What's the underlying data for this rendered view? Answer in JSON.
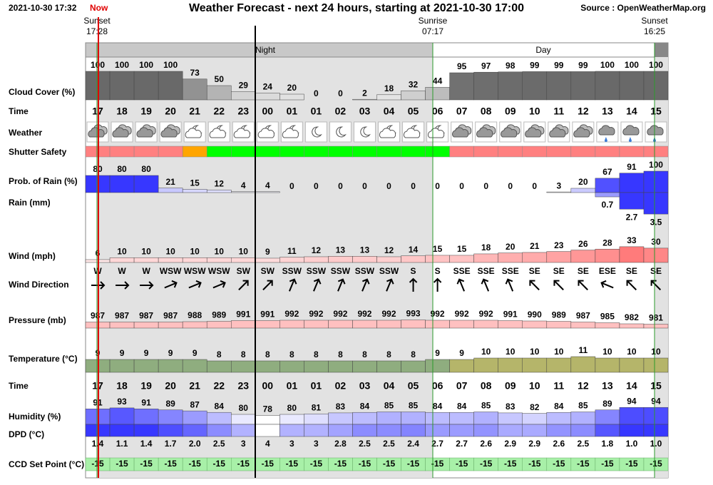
{
  "header": {
    "timestamp": "2021-10-30 17:32",
    "now": "Now",
    "title": "Weather Forecast - next 24 hours, starting at 2021-10-30 17:00",
    "source": "Source : OpenWeatherMap.org"
  },
  "sun_events": [
    {
      "label": "Sunset",
      "time": "17:28"
    },
    {
      "label": "Sunrise",
      "time": "07:17"
    },
    {
      "label": "Sunset",
      "time": "16:25"
    }
  ],
  "periods": [
    "Night",
    "Day"
  ],
  "row_labels": [
    "Cloud Cover (%)",
    "Time",
    "Weather",
    "Shutter Safety",
    "Prob. of Rain (%)",
    "Rain (mm)",
    "Wind (mph)",
    "Wind Direction",
    "Pressure (mb)",
    "Temperature (°C)",
    "Time",
    "Humidity (%)",
    "DPD (°C)",
    "CCD Set Point (°C)"
  ],
  "hours": [
    "17",
    "18",
    "19",
    "20",
    "21",
    "22",
    "23",
    "00",
    "01",
    "01",
    "02",
    "03",
    "04",
    "05",
    "06",
    "07",
    "08",
    "09",
    "10",
    "11",
    "12",
    "13",
    "14",
    "15"
  ],
  "cloud_cover": [
    100,
    100,
    100,
    100,
    73,
    50,
    29,
    24,
    20,
    0,
    0,
    2,
    18,
    32,
    44,
    95,
    97,
    98,
    99,
    99,
    99,
    100,
    100,
    100
  ],
  "weather": [
    "cloudy",
    "cloudy",
    "cloudy",
    "cloudy",
    "night-partly",
    "night-partly",
    "night-partly",
    "night-partly",
    "night-partly",
    "clear-night",
    "clear-night",
    "clear-night",
    "night-partly",
    "night-partly",
    "night-partly",
    "cloudy",
    "cloudy",
    "cloudy",
    "cloudy",
    "cloudy",
    "cloudy",
    "rain",
    "rain",
    "rain"
  ],
  "shutter_safety": [
    "#ff8080",
    "#ff8080",
    "#ff8080",
    "#ff8080",
    "#ffa500",
    "#00ff00",
    "#00ff00",
    "#00ff00",
    "#00ff00",
    "#00ff00",
    "#00ff00",
    "#00ff00",
    "#00ff00",
    "#00ff00",
    "#00ff00",
    "#ff8080",
    "#ff8080",
    "#ff8080",
    "#ff8080",
    "#ff8080",
    "#ff8080",
    "#ff8080",
    "#ff8080",
    "#ff8080"
  ],
  "rain_probability": [
    80,
    80,
    80,
    21,
    15,
    12,
    4,
    4,
    0,
    0,
    0,
    0,
    0,
    0,
    0,
    0,
    0,
    0,
    0,
    3,
    20,
    67,
    91,
    100
  ],
  "rain_mm": [
    null,
    null,
    null,
    null,
    null,
    null,
    null,
    null,
    null,
    null,
    null,
    null,
    null,
    null,
    null,
    null,
    null,
    null,
    null,
    null,
    null,
    0.7,
    2.7,
    3.5
  ],
  "wind_mph": [
    6,
    10,
    10,
    10,
    10,
    10,
    10,
    9,
    11,
    12,
    13,
    13,
    12,
    14,
    15,
    15,
    18,
    20,
    21,
    23,
    26,
    28,
    33,
    30
  ],
  "wind_direction": [
    "W",
    "W",
    "W",
    "WSW",
    "WSW",
    "WSW",
    "SW",
    "SW",
    "SSW",
    "SSW",
    "SSW",
    "SSW",
    "SSW",
    "S",
    "S",
    "SSE",
    "SSE",
    "SSE",
    "SE",
    "SE",
    "SE",
    "ESE",
    "SE",
    "SE"
  ],
  "pressure_mb": [
    987,
    987,
    987,
    987,
    988,
    989,
    991,
    991,
    992,
    992,
    992,
    992,
    992,
    993,
    992,
    992,
    992,
    991,
    990,
    989,
    987,
    985,
    982,
    981
  ],
  "temperature_c": [
    9,
    9,
    9,
    9,
    9,
    8,
    8,
    8,
    8,
    8,
    8,
    8,
    8,
    8,
    9,
    9,
    10,
    10,
    10,
    10,
    11,
    10,
    10,
    10
  ],
  "humidity": [
    91,
    93,
    91,
    89,
    87,
    84,
    80,
    78,
    80,
    81,
    83,
    84,
    85,
    85,
    84,
    84,
    85,
    83,
    82,
    84,
    85,
    89,
    94,
    94
  ],
  "dpd": {
    "values": [
      1.4,
      1.1,
      1.4,
      1.7,
      2.0,
      2.5,
      3,
      4,
      3,
      3,
      2.8,
      2.5,
      2.5,
      2.4,
      2.7,
      2.7,
      2.6,
      2.9,
      2.9,
      2.6,
      2.5,
      1.8,
      1.0,
      1.0
    ],
    "value_labels": [
      "1.4",
      "1.1",
      "1.4",
      "1.7",
      "2.0",
      "2.5",
      "3",
      "4",
      "3",
      "3",
      "2.8",
      "2.5",
      "2.5",
      "2.4",
      "2.7",
      "2.7",
      "2.6",
      "2.9",
      "2.9",
      "2.6",
      "2.5",
      "1.8",
      "1.0",
      "1.0"
    ]
  },
  "ccd_set_point": [
    -15,
    -15,
    -15,
    -15,
    -15,
    -15,
    -15,
    -15,
    -15,
    -15,
    -15,
    -15,
    -15,
    -15,
    -15,
    -15,
    -15,
    -15,
    -15,
    -15,
    -15,
    -15,
    -15,
    -15
  ]
}
